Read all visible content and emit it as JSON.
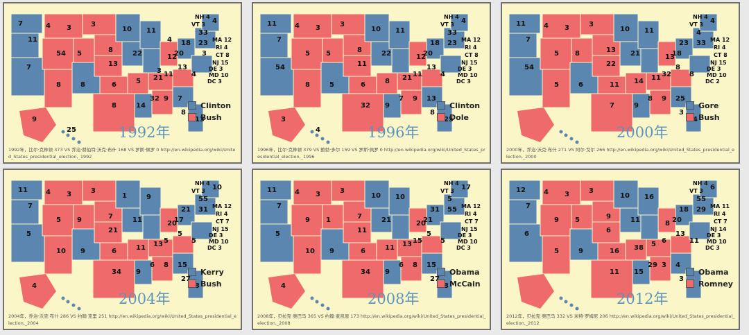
{
  "colors": {
    "dem": "#5b86b0",
    "rep": "#ef6b6b",
    "panel_bg": "#fbf6c7",
    "year": "#5a94bd"
  },
  "panels": [
    {
      "year": "1992年",
      "dem": "Clinton",
      "rep": "Bush",
      "ne_labels": [
        "NH 4",
        "VT 3",
        "MA 12",
        "RI 4",
        "CT 8",
        "NJ 15",
        "DE 3",
        "MD 10",
        "DC 3"
      ],
      "numbers": [
        "7",
        "11",
        "4",
        "3",
        "3",
        "10",
        "11",
        "4",
        "20",
        "18",
        "23",
        "33",
        "7",
        "54",
        "5",
        "8",
        "13",
        "22",
        "12",
        "21",
        "13",
        "4",
        "8",
        "8",
        "6",
        "5",
        "11",
        "8",
        "14",
        "32",
        "9",
        "7",
        "8",
        "13",
        "9",
        "25",
        "3",
        "4",
        "3"
      ],
      "caption": "1992年，比尔·克林顿 373 VS 乔治·赫伯特·沃克·布什 168 VS 罗斯·佩罗 0 http://en.wikipedia.org/wiki/United_States_presidential_election,_1992"
    },
    {
      "year": "1996年",
      "dem": "Clinton",
      "rep": "Dole",
      "ne_labels": [
        "NH 4",
        "VT 3",
        "MA 12",
        "RI 4",
        "CT 8",
        "NJ 15",
        "DE 3",
        "MD 10",
        "DC 3"
      ],
      "numbers": [
        "11",
        "7",
        "4",
        "3",
        "3",
        "10",
        "11",
        "4",
        "20",
        "18",
        "23",
        "33",
        "54",
        "5",
        "5",
        "8",
        "11",
        "22",
        "12",
        "21",
        "13",
        "4",
        "8",
        "5",
        "6",
        "8",
        "11",
        "32",
        "9",
        "7",
        "9",
        "13",
        "8",
        "25",
        "3",
        "4"
      ],
      "caption": "1996年，比尔·克林顿 379 VS 鲍勃·多尔 159 VS 罗斯·佩罗 0 http://en.wikipedia.org/wiki/United_States_presidential_election,_1996"
    },
    {
      "year": "2000年",
      "dem": "Gore",
      "rep": "Bush",
      "ne_labels": [
        "NH 4",
        "VT 3",
        "MA 12",
        "RI 4",
        "CT 8",
        "NJ 15",
        "DE 3",
        "MD 10",
        "DC 2"
      ],
      "numbers": [
        "11",
        "7",
        "4",
        "3",
        "3",
        "10",
        "11",
        "4",
        "18",
        "23",
        "33",
        "4",
        "54",
        "5",
        "8",
        "13",
        "22",
        "21",
        "13",
        "11",
        "8",
        "8",
        "5",
        "6",
        "11",
        "14",
        "32",
        "7",
        "9",
        "8",
        "9",
        "25",
        "3",
        "4"
      ],
      "caption": "2000年，乔治·沃克·布什 271 VS 阿尔·戈尔 266 http://en.wikipedia.org/wiki/United_States_presidential_election,_2000"
    },
    {
      "year": "2004年",
      "dem": "Kerry",
      "rep": "Bush",
      "ne_labels": [
        "NH 4",
        "VT 3",
        "MA 12",
        "RI 4",
        "CT 7",
        "NJ 15",
        "DE 3",
        "MD 10",
        "DC 3"
      ],
      "numbers": [
        "11",
        "7",
        "4",
        "3",
        "3",
        "1",
        "9",
        "10",
        "17",
        "21",
        "31",
        "55",
        "5",
        "5",
        "9",
        "7",
        "21",
        "11",
        "20",
        "13",
        "5",
        "5",
        "10",
        "9",
        "6",
        "11",
        "5",
        "34",
        "9",
        "6",
        "8",
        "15",
        "27",
        "3",
        "4"
      ],
      "caption": "2004年，乔治·沃克·布什 286 VS 约翰·克里 251 http://en.wikipedia.org/wiki/United_States_presidential_election,_2004"
    },
    {
      "year": "2008年",
      "dem": "Obama",
      "rep": "McCain",
      "ne_labels": [
        "NH 4",
        "VT 3",
        "MA 12",
        "RI 4",
        "CT 7",
        "NJ 15",
        "DE 3",
        "MD 10",
        "DC 3"
      ],
      "numbers": [
        "11",
        "7",
        "4",
        "3",
        "3",
        "10",
        "10",
        "17",
        "21",
        "31",
        "55",
        "5",
        "5",
        "9",
        "1",
        "7",
        "11",
        "21",
        "20",
        "13",
        "5",
        "5",
        "10",
        "9",
        "6",
        "11",
        "15",
        "34",
        "9",
        "6",
        "8",
        "15",
        "27",
        "3",
        "4"
      ],
      "caption": "2008年，贝拉克·奥巴马 365 VS 约翰·麦凯恩 173 http://en.wikipedia.org/wiki/United_States_presidential_election,_2008"
    },
    {
      "year": "2012年",
      "dem": "Obama",
      "rep": "Romney",
      "ne_labels": [
        "NH 4",
        "VT 3",
        "MA 11",
        "RI 4",
        "CT 7",
        "NJ 14",
        "DE 3",
        "MD 10",
        "DC 3"
      ],
      "numbers": [
        "12",
        "7",
        "4",
        "3",
        "3",
        "10",
        "16",
        "6",
        "20",
        "18",
        "29",
        "55",
        "6",
        "9",
        "5",
        "9",
        "6",
        "11",
        "8",
        "5",
        "13",
        "11",
        "5",
        "9",
        "16",
        "38",
        "6",
        "11",
        "15",
        "29",
        "3",
        "4",
        "3"
      ],
      "caption": "2012年，贝拉克·奥巴马 332 VS 米特·罗姆尼 206 http://en.wikipedia.org/wiki/United_States_presidential_election,_2012"
    }
  ]
}
